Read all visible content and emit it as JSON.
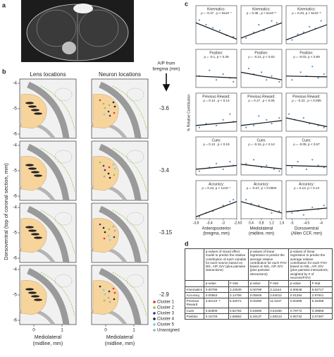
{
  "a": {
    "label": "a"
  },
  "b": {
    "label": "b",
    "col_titles": [
      "Lens locations",
      "Neuron locations"
    ],
    "ap_title": [
      "A/P from",
      "bregma (mm)"
    ],
    "levels": [
      "-3.6",
      "-3.4",
      "-3.15",
      "-2.9"
    ],
    "yticks": [
      -4,
      -5,
      -6
    ],
    "xticks": [
      0,
      1
    ],
    "ylabel": "Dorsoventral (top of coronal section, mm)",
    "xlabel": [
      "Mediolateral",
      "(midline, mm)"
    ],
    "legend": [
      {
        "name": "Cluster 1",
        "color": "#e8322b"
      },
      {
        "name": "Cluster 2",
        "color": "#8cc63f"
      },
      {
        "name": "Cluster 3",
        "color": "#2b3990"
      },
      {
        "name": "Cluster 4",
        "color": "#231f20"
      },
      {
        "name": "Cluster 5",
        "color": "#6dcff6"
      },
      {
        "name": "Unassigned",
        "color": "#a7a9ac"
      }
    ]
  },
  "c": {
    "label": "c",
    "ylabel": "% Relative Contribution",
    "ylim": [
      0,
      1
    ],
    "point_color": "#3a7fc1",
    "xaxes": [
      {
        "label": [
          "Anteroposterior",
          "(bregma, mm)"
        ],
        "xlim": [
          -3.8,
          -2.6
        ],
        "xticks": [
          -3.8,
          -3.4,
          -3,
          -2.6
        ]
      },
      {
        "label": [
          "Mediolateral",
          "(midline, mm)"
        ],
        "xlim": [
          0,
          1.6
        ],
        "xticks": [
          0,
          0.4,
          0.8,
          1.2,
          1.6
        ]
      },
      {
        "label": [
          "Dorsoventral",
          "(Allen CCF, mm)"
        ],
        "xlim": [
          -5.2,
          -3.8
        ],
        "xticks": [
          -5,
          -4.5,
          -4
        ]
      }
    ],
    "panels": [
      {
        "title": "Kinematics:",
        "annotation": "ρ = -0.47 , p < 8x10⁻⁷",
        "x": [
          -3.7,
          -3.5,
          -3.3,
          -3.1,
          -2.9,
          -2.7
        ],
        "y": [
          0.62,
          0.5,
          0.42,
          0.35,
          0.22,
          0.18
        ],
        "fit": [
          0.55,
          0.12
        ]
      },
      {
        "title": "Kinematics:",
        "annotation": "ρ = 0.35 , p < 5x10⁻⁵",
        "x": [
          0.2,
          0.5,
          0.7,
          0.9,
          1.2,
          1.4
        ],
        "y": [
          0.15,
          0.3,
          0.5,
          0.35,
          0.6,
          0.55
        ],
        "fit": [
          0.15,
          0.55
        ]
      },
      {
        "title": "Kinematics:",
        "annotation": "ρ = 0.43, p < 5x10⁻⁵",
        "x": [
          -5,
          -4.8,
          -4.6,
          -4.4,
          -4.2,
          -4
        ],
        "y": [
          0.1,
          0.25,
          0.3,
          0.45,
          0.4,
          0.6
        ],
        "fit": [
          0.1,
          0.5
        ]
      },
      {
        "title": "Position:",
        "annotation": "ρ = -0.1, p < 0.39",
        "x": [
          -3.7,
          -3.4,
          -3.2,
          -3,
          -2.8,
          -2.7
        ],
        "y": [
          0.3,
          0.45,
          0.2,
          0.35,
          0.25,
          0.15
        ],
        "fit": [
          0.3,
          0.25
        ]
      },
      {
        "title": "Position:",
        "annotation": "ρ = -0.21, p < 0.02",
        "x": [
          0.3,
          0.5,
          0.8,
          1,
          1.2,
          1.5
        ],
        "y": [
          0.5,
          0.35,
          0.4,
          0.2,
          0.3,
          0.15
        ],
        "fit": [
          0.4,
          0.2
        ]
      },
      {
        "title": "Position:",
        "annotation": "ρ = -0.03, p < 0.69",
        "x": [
          -5,
          -4.7,
          -4.5,
          -4.3,
          -4.1,
          -3.9
        ],
        "y": [
          0.2,
          0.4,
          0.3,
          0.55,
          0.25,
          0.35
        ],
        "fit": [
          0.3,
          0.28
        ]
      },
      {
        "title": "Previous Reward:",
        "annotation": "ρ = 0.14 , p < 0.14",
        "x": [
          -3.7,
          -3.5,
          -3.2,
          -3,
          -2.8,
          -2.7
        ],
        "y": [
          0.1,
          0.2,
          0.15,
          0.3,
          0.45,
          0.25
        ],
        "fit": [
          0.15,
          0.25
        ]
      },
      {
        "title": "Previous Reward:",
        "annotation": "ρ = 0.17 , p < 0.05",
        "x": [
          0.2,
          0.5,
          0.7,
          1,
          1.2,
          1.5
        ],
        "y": [
          0.1,
          0.15,
          0.4,
          0.3,
          0.2,
          0.35
        ],
        "fit": [
          0.15,
          0.28
        ]
      },
      {
        "title": "Previous Reward:",
        "annotation": "ρ = -0.23 , p < 0.005",
        "x": [
          -5.1,
          -4.9,
          -4.6,
          -4.4,
          -4.1,
          -3.9
        ],
        "y": [
          0.45,
          0.3,
          0.35,
          0.2,
          0.15,
          0.1
        ],
        "fit": [
          0.35,
          0.12
        ]
      },
      {
        "title": "Cues:",
        "annotation": "ρ = 0.13 , p < 0.19",
        "x": [
          -3.7,
          -3.4,
          -3.2,
          -3,
          -2.8,
          -2.7
        ],
        "y": [
          0.1,
          0.2,
          0.3,
          0.15,
          0.35,
          0.25
        ],
        "fit": [
          0.15,
          0.25
        ]
      },
      {
        "title": "Cues:",
        "annotation": "ρ = -0.15, p < 0.14",
        "x": [
          0.2,
          0.5,
          0.8,
          1,
          1.3,
          1.5
        ],
        "y": [
          0.3,
          0.4,
          0.2,
          0.25,
          0.15,
          0.1
        ],
        "fit": [
          0.28,
          0.16
        ]
      },
      {
        "title": "Cues:",
        "annotation": "ρ = -0.05, p < 0.57",
        "x": [
          -5,
          -4.8,
          -4.5,
          -4.3,
          -4.1,
          -3.9
        ],
        "y": [
          0.2,
          0.35,
          0.15,
          0.4,
          0.25,
          0.2
        ],
        "fit": [
          0.25,
          0.22
        ]
      },
      {
        "title": "Accuracy:",
        "annotation": "ρ = 0.44, p < 1x10⁻⁷",
        "x": [
          -3.7,
          -3.5,
          -3.3,
          -3,
          -2.8,
          -2.7
        ],
        "y": [
          0.05,
          0.15,
          0.2,
          0.35,
          0.45,
          0.5
        ],
        "fit": [
          0.05,
          0.45
        ]
      },
      {
        "title": "Accuracy:",
        "annotation": "ρ = -0.27, p < 0.0004",
        "x": [
          0.2,
          0.4,
          0.7,
          1,
          1.2,
          1.5
        ],
        "y": [
          0.5,
          0.4,
          0.35,
          0.25,
          0.15,
          0.2
        ],
        "fit": [
          0.45,
          0.15
        ]
      },
      {
        "title": "Accuracy:",
        "annotation": "ρ = 0.13, p < 0.14",
        "x": [
          -5,
          -4.8,
          -4.6,
          -4.3,
          -4.1,
          -3.9
        ],
        "y": [
          0.15,
          0.2,
          0.1,
          0.3,
          0.25,
          0.35
        ],
        "fit": [
          0.18,
          0.28
        ]
      }
    ]
  },
  "d": {
    "label": "d",
    "group_headers": [
      "p-values of mixed effect model to predict the relative contribution of each variable for each neuron based on M/L, A/P, D/V (plus pairwise interactions)",
      "p-values of linear regression to predict the average relative contribution for each FOV based on M/L, A/P, D/V (plus pairwise interactions)",
      "p-values of linear regression to predict the average relative contribution for each FOV based on M/L, A/P, D/V (plus pairwise interactions; weighted by # of neurons/FOV)"
    ],
    "sub_headers": [
      "p-value",
      "F-stat"
    ],
    "rows": [
      [
        "Kinematics",
        "0.00789",
        "3.43539",
        "0.00789",
        "3.11164",
        "0.00548",
        "5.62717"
      ],
      [
        "Accuracy",
        "0.00553",
        "3.14756",
        "0.05849",
        "2.84012",
        "0.01284",
        "2.97641"
      ],
      [
        "Previous Reward",
        "3.64x10⁻⁸",
        "5.33072",
        "0.00280",
        "11.0237",
        "0.00398",
        "6.33488"
      ],
      [
        "Cues",
        "0.54809",
        "0.82794",
        "0.53590",
        "0.81936",
        "0.79772",
        "0.49896"
      ],
      [
        "Position",
        "0.15729",
        "1.56862",
        "0.18137",
        "1.80213",
        "0.05732",
        "2.07397"
      ]
    ]
  }
}
